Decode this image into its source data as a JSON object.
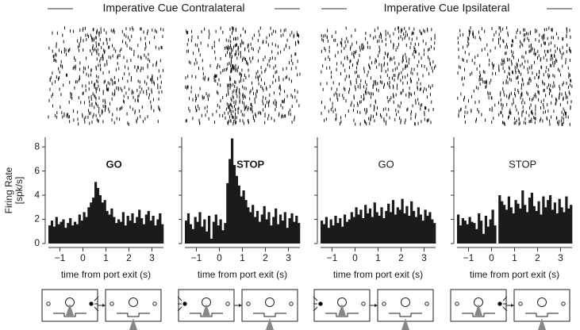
{
  "headers": [
    "Imperative Cue Contralateral",
    "Imperative Cue Ipsilateral"
  ],
  "chart_data": [
    {
      "type": "histogram",
      "title": "GO",
      "title_color": "#000000",
      "title_bold": true,
      "color": "#1a1a1a",
      "ylabel": [
        "Firing Rate",
        "[spk/s]"
      ],
      "xlabel": "time from port exit (s)",
      "show_ytick_labels": true,
      "xlim": [
        -1.5,
        3.5
      ],
      "ylim": [
        0,
        8.8
      ],
      "xticks": [
        {
          "value": -1,
          "label": "−1"
        },
        0,
        1,
        2,
        3
      ],
      "yticks": [
        0,
        2,
        4,
        6,
        8
      ],
      "bins": [
        -1.5,
        -1.4,
        -1.3,
        -1.2,
        -1.1,
        -1.0,
        -0.9,
        -0.8,
        -0.7,
        -0.6,
        -0.5,
        -0.4,
        -0.3,
        -0.2,
        -0.1,
        0.0,
        0.1,
        0.2,
        0.3,
        0.4,
        0.5,
        0.6,
        0.7,
        0.8,
        0.9,
        1.0,
        1.1,
        1.2,
        1.3,
        1.4,
        1.5,
        1.6,
        1.7,
        1.8,
        1.9,
        2.0,
        2.1,
        2.2,
        2.3,
        2.4,
        2.5,
        2.6,
        2.7,
        2.8,
        2.9,
        3.0,
        3.1,
        3.2,
        3.3,
        3.4,
        3.5
      ],
      "values": [
        1.5,
        1.9,
        1.4,
        2.2,
        1.6,
        1.8,
        2.0,
        1.3,
        1.7,
        2.1,
        1.5,
        1.8,
        1.6,
        2.4,
        1.9,
        2.6,
        2.2,
        3.0,
        3.4,
        3.8,
        5.1,
        4.6,
        4.0,
        3.4,
        3.6,
        2.7,
        2.4,
        2.9,
        2.2,
        1.7,
        2.0,
        1.8,
        2.6,
        1.5,
        2.3,
        1.9,
        2.5,
        1.7,
        2.2,
        2.8,
        2.1,
        1.6,
        2.4,
        2.7,
        1.9,
        2.3,
        1.5,
        2.0,
        2.5,
        1.6
      ]
    },
    {
      "type": "histogram",
      "title": "STOP",
      "title_color": "#7f7f7f",
      "title_bold": true,
      "color": "#1a1a1a",
      "xlabel": "time from port exit (s)",
      "show_ytick_labels": false,
      "xlim": [
        -1.5,
        3.5
      ],
      "ylim": [
        0,
        8.8
      ],
      "xticks": [
        {
          "value": -1,
          "label": "−1"
        },
        0,
        1,
        2,
        3
      ],
      "yticks": [
        0,
        2,
        4,
        6,
        8
      ],
      "bins": [
        -1.5,
        -1.4,
        -1.3,
        -1.2,
        -1.1,
        -1.0,
        -0.9,
        -0.8,
        -0.7,
        -0.6,
        -0.5,
        -0.4,
        -0.3,
        -0.2,
        -0.1,
        0.0,
        0.1,
        0.2,
        0.3,
        0.4,
        0.5,
        0.6,
        0.7,
        0.8,
        0.9,
        1.0,
        1.1,
        1.2,
        1.3,
        1.4,
        1.5,
        1.6,
        1.7,
        1.8,
        1.9,
        2.0,
        2.1,
        2.2,
        2.3,
        2.4,
        2.5,
        2.6,
        2.7,
        2.8,
        2.9,
        3.0,
        3.1,
        3.2,
        3.3,
        3.4,
        3.5
      ],
      "values": [
        1.9,
        2.5,
        1.6,
        1.2,
        2.2,
        1.8,
        2.6,
        1.4,
        2.0,
        1.0,
        2.3,
        0.4,
        1.8,
        2.4,
        1.5,
        2.0,
        1.1,
        1.7,
        5.0,
        7.0,
        8.7,
        6.5,
        5.6,
        4.8,
        3.9,
        4.4,
        3.6,
        3.0,
        2.6,
        3.2,
        2.2,
        2.7,
        1.8,
        2.4,
        3.1,
        2.0,
        2.6,
        1.5,
        2.2,
        2.9,
        1.6,
        2.4,
        1.9,
        2.6,
        1.3,
        2.1,
        2.5,
        1.8,
        2.3,
        1.7
      ]
    },
    {
      "type": "histogram",
      "title": "GO",
      "title_color": "#000000",
      "title_bold": false,
      "color": "#1a1a1a",
      "xlabel": "time from port exit (s)",
      "show_ytick_labels": false,
      "xlim": [
        -1.5,
        3.5
      ],
      "ylim": [
        0,
        8.8
      ],
      "xticks": [
        {
          "value": -1,
          "label": "−1"
        },
        0,
        1,
        2,
        3
      ],
      "yticks": [
        0,
        2,
        4,
        6,
        8
      ],
      "bins": [
        -1.5,
        -1.4,
        -1.3,
        -1.2,
        -1.1,
        -1.0,
        -0.9,
        -0.8,
        -0.7,
        -0.6,
        -0.5,
        -0.4,
        -0.3,
        -0.2,
        -0.1,
        0.0,
        0.1,
        0.2,
        0.3,
        0.4,
        0.5,
        0.6,
        0.7,
        0.8,
        0.9,
        1.0,
        1.1,
        1.2,
        1.3,
        1.4,
        1.5,
        1.6,
        1.7,
        1.8,
        1.9,
        2.0,
        2.1,
        2.2,
        2.3,
        2.4,
        2.5,
        2.6,
        2.7,
        2.8,
        2.9,
        3.0,
        3.1,
        3.2,
        3.3,
        3.4,
        3.5
      ],
      "values": [
        1.9,
        1.6,
        2.2,
        1.3,
        2.0,
        1.5,
        2.3,
        1.7,
        2.1,
        1.4,
        2.4,
        1.8,
        2.0,
        2.6,
        2.2,
        3.0,
        2.4,
        2.8,
        2.1,
        3.2,
        2.5,
        2.9,
        2.2,
        3.4,
        2.6,
        2.3,
        3.0,
        2.1,
        2.7,
        3.3,
        2.6,
        3.6,
        2.4,
        3.0,
        2.8,
        3.7,
        2.5,
        3.1,
        2.3,
        3.5,
        2.7,
        2.2,
        3.0,
        2.4,
        1.9,
        2.8,
        2.3,
        2.6,
        2.0,
        1.7
      ]
    },
    {
      "type": "histogram",
      "title": "STOP",
      "title_color": "#a6a6a6",
      "title_bold": false,
      "color": "#1a1a1a",
      "xlabel": "time from port exit (s)",
      "show_ytick_labels": false,
      "xlim": [
        -1.5,
        3.5
      ],
      "ylim": [
        0,
        8.8
      ],
      "xticks": [
        {
          "value": -1,
          "label": "−1"
        },
        0,
        1,
        2,
        3
      ],
      "yticks": [
        0,
        2,
        4,
        6,
        8
      ],
      "bins": [
        -1.5,
        -1.4,
        -1.3,
        -1.2,
        -1.1,
        -1.0,
        -0.9,
        -0.8,
        -0.7,
        -0.6,
        -0.5,
        -0.4,
        -0.3,
        -0.2,
        -0.1,
        0.0,
        0.1,
        0.2,
        0.3,
        0.4,
        0.5,
        0.6,
        0.7,
        0.8,
        0.9,
        1.0,
        1.1,
        1.2,
        1.3,
        1.4,
        1.5,
        1.6,
        1.7,
        1.8,
        1.9,
        2.0,
        2.1,
        2.2,
        2.3,
        2.4,
        2.5,
        2.6,
        2.7,
        2.8,
        2.9,
        3.0,
        3.1,
        3.2,
        3.3,
        3.4,
        3.5
      ],
      "values": [
        2.4,
        1.5,
        2.1,
        1.9,
        1.6,
        2.2,
        1.8,
        1.7,
        1.2,
        2.5,
        1.9,
        0.8,
        2.3,
        1.4,
        2.0,
        2.8,
        1.5,
        0.0,
        4.0,
        3.5,
        3.2,
        2.8,
        3.9,
        3.0,
        2.5,
        3.6,
        3.3,
        2.9,
        4.4,
        3.2,
        2.6,
        3.8,
        4.2,
        3.1,
        2.7,
        3.5,
        2.4,
        3.9,
        3.0,
        3.6,
        4.0,
        2.8,
        3.4,
        2.5,
        3.7,
        3.0,
        2.6,
        3.9,
        2.9,
        3.2
      ]
    }
  ]
}
